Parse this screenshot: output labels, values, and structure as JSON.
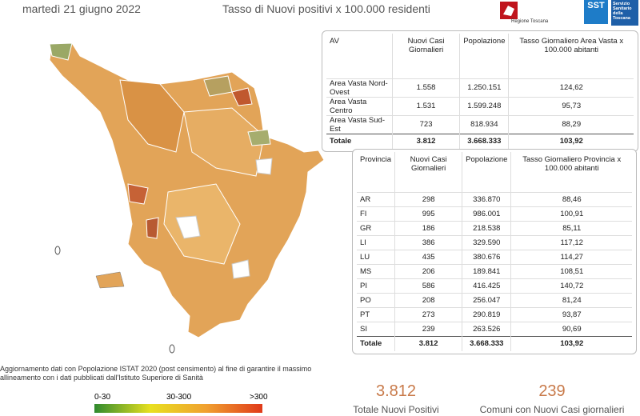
{
  "header": {
    "date": "martedì 21 giugno 2022",
    "title": "Tasso di Nuovi positivi x 100.000 residenti",
    "logo_left": "Regione Toscana",
    "logo_right_short": "SST",
    "logo_right": "Servizio Sanitario della Toscana"
  },
  "table_av": {
    "headers": [
      "AV",
      "Nuovi Casi Giornalieri",
      "Popolazione",
      "Tasso Giornaliero Area Vasta x 100.000 abitanti"
    ],
    "rows": [
      [
        "Area Vasta Nord-Ovest",
        "1.558",
        "1.250.151",
        "124,62"
      ],
      [
        "Area Vasta Centro",
        "1.531",
        "1.599.248",
        "95,73"
      ],
      [
        "Area Vasta Sud-Est",
        "723",
        "818.934",
        "88,29"
      ]
    ],
    "total": [
      "Totale",
      "3.812",
      "3.668.333",
      "103,92"
    ]
  },
  "table_prov": {
    "headers": [
      "Provincia",
      "Nuovi Casi Giornalieri",
      "Popolazione",
      "Tasso Giornaliero Provincia x 100.000 abitanti"
    ],
    "rows": [
      [
        "AR",
        "298",
        "336.870",
        "88,46"
      ],
      [
        "FI",
        "995",
        "986.001",
        "100,91"
      ],
      [
        "GR",
        "186",
        "218.538",
        "85,11"
      ],
      [
        "LI",
        "386",
        "329.590",
        "117,12"
      ],
      [
        "LU",
        "435",
        "380.676",
        "114,27"
      ],
      [
        "MS",
        "206",
        "189.841",
        "108,51"
      ],
      [
        "PI",
        "586",
        "416.425",
        "140,72"
      ],
      [
        "PO",
        "208",
        "256.047",
        "81,24"
      ],
      [
        "PT",
        "273",
        "290.819",
        "93,87"
      ],
      [
        "SI",
        "239",
        "263.526",
        "90,69"
      ]
    ],
    "total": [
      "Totale",
      "3.812",
      "3.668.333",
      "103,92"
    ]
  },
  "footnote": "Aggiornamento dati con Popolazione ISTAT 2020 (post censimento) al fine di garantire il massimo allineamento con i dati pubblicati dall'Istituto Superiore di Sanità",
  "legend": {
    "labels": [
      "0-30",
      "30-300",
      ">300"
    ]
  },
  "kpis": [
    {
      "value": "3.812",
      "label": "Totale Nuovi Positivi"
    },
    {
      "value": "239",
      "label": "Comuni con Nuovi Casi giornalieri"
    }
  ]
}
